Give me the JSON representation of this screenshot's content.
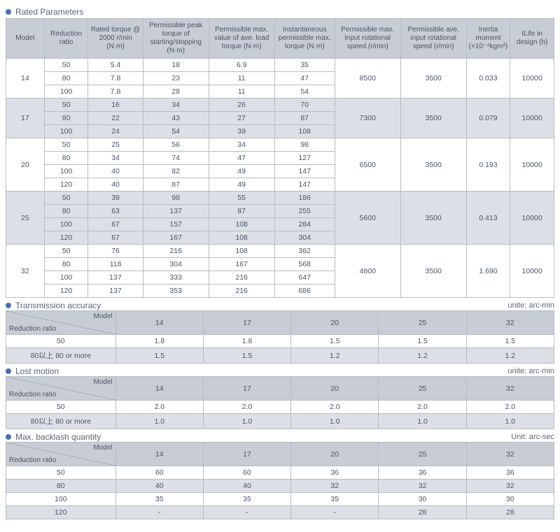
{
  "sections": {
    "rated": {
      "title": "Rated Parameters"
    },
    "trans": {
      "title": "Transmission accuracy",
      "unit": "unite: arc-min"
    },
    "lost": {
      "title": "Lost motion",
      "unit": "unite: arc-min"
    },
    "back": {
      "title": "Max. backlash quantity",
      "unit": "Unit: arc-sec"
    }
  },
  "t1": {
    "headers": [
      "Model",
      "Reduction ratio",
      "Rated torque @ 2000 r/min (N·m)",
      "Permissible peak torque of starting/stopping (N·m)",
      "Permissible max. value of ave. load torque (N·m)",
      "Instantaneous permissible max. torque (N·m)",
      "Permissible max. input rotational speed (r/min)",
      "Permissible ave. input rotational speed (r/min)",
      "Inertia moment (×10⁻⁴kgm²)",
      "ILife in design (h)"
    ],
    "groups": [
      {
        "model": "14",
        "maxspeed": "8500",
        "avespeed": "3500",
        "inertia": "0.033",
        "life": "10000",
        "alt": false,
        "rows": [
          [
            "50",
            "5.4",
            "18",
            "6.9",
            "35"
          ],
          [
            "80",
            "7.8",
            "23",
            "11",
            "47"
          ],
          [
            "100",
            "7.8",
            "28",
            "11",
            "54"
          ]
        ]
      },
      {
        "model": "17",
        "maxspeed": "7300",
        "avespeed": "3500",
        "inertia": "0.079",
        "life": "10000",
        "alt": true,
        "rows": [
          [
            "50",
            "16",
            "34",
            "26",
            "70"
          ],
          [
            "80",
            "22",
            "43",
            "27",
            "87"
          ],
          [
            "100",
            "24",
            "54",
            "39",
            "108"
          ]
        ]
      },
      {
        "model": "20",
        "maxspeed": "6500",
        "avespeed": "3500",
        "inertia": "0.193",
        "life": "10000",
        "alt": false,
        "rows": [
          [
            "50",
            "25",
            "56",
            "34",
            "98"
          ],
          [
            "80",
            "34",
            "74",
            "47",
            "127"
          ],
          [
            "100",
            "40",
            "82",
            "49",
            "147"
          ],
          [
            "120",
            "40",
            "87",
            "49",
            "147"
          ]
        ]
      },
      {
        "model": "25",
        "maxspeed": "5600",
        "avespeed": "3500",
        "inertia": "0.413",
        "life": "10000",
        "alt": true,
        "rows": [
          [
            "50",
            "39",
            "98",
            "55",
            "186"
          ],
          [
            "80",
            "63",
            "137",
            "87",
            "255"
          ],
          [
            "100",
            "67",
            "157",
            "108",
            "284"
          ],
          [
            "120",
            "67",
            "167",
            "108",
            "304"
          ]
        ]
      },
      {
        "model": "32",
        "maxspeed": "4800",
        "avespeed": "3500",
        "inertia": "1.690",
        "life": "10000",
        "alt": false,
        "rows": [
          [
            "50",
            "76",
            "216",
            "108",
            "382"
          ],
          [
            "80",
            "118",
            "304",
            "167",
            "568"
          ],
          [
            "100",
            "137",
            "333",
            "216",
            "647"
          ],
          [
            "120",
            "137",
            "353",
            "216",
            "686"
          ]
        ]
      }
    ]
  },
  "diag": {
    "top": "Model",
    "bottom": "Reduction ratio"
  },
  "models": [
    "14",
    "17",
    "20",
    "25",
    "32"
  ],
  "t2": {
    "rows": [
      {
        "label": "50",
        "vals": [
          "1.8",
          "1.8",
          "1.5",
          "1.5",
          "1.5"
        ]
      },
      {
        "label": "80以上 80 or more",
        "vals": [
          "1.5",
          "1.5",
          "1.2",
          "1.2",
          "1.2"
        ]
      }
    ]
  },
  "t3": {
    "rows": [
      {
        "label": "50",
        "vals": [
          "2.0",
          "2.0",
          "2.0",
          "2.0",
          "2.0"
        ]
      },
      {
        "label": "80以上 80 or more",
        "vals": [
          "1.0",
          "1.0",
          "1.0",
          "1.0",
          "1.0"
        ]
      }
    ]
  },
  "t4": {
    "rows": [
      {
        "label": "50",
        "vals": [
          "60",
          "60",
          "36",
          "36",
          "36"
        ]
      },
      {
        "label": "80",
        "vals": [
          "40",
          "40",
          "32",
          "32",
          "32"
        ]
      },
      {
        "label": "100",
        "vals": [
          "35",
          "35",
          "35",
          "30",
          "30"
        ]
      },
      {
        "label": "120",
        "vals": [
          "-",
          "-",
          "-",
          "28",
          "28"
        ]
      }
    ]
  }
}
